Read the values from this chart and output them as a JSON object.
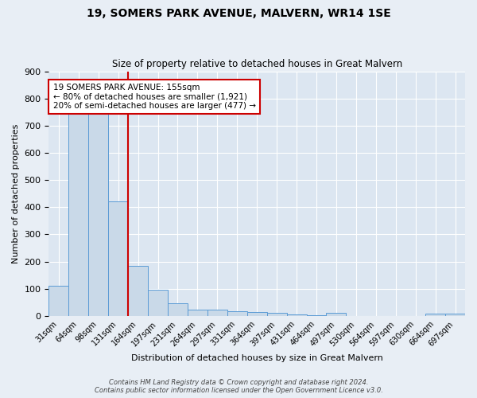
{
  "title": "19, SOMERS PARK AVENUE, MALVERN, WR14 1SE",
  "subtitle": "Size of property relative to detached houses in Great Malvern",
  "xlabel": "Distribution of detached houses by size in Great Malvern",
  "ylabel": "Number of detached properties",
  "categories": [
    "31sqm",
    "64sqm",
    "98sqm",
    "131sqm",
    "164sqm",
    "197sqm",
    "231sqm",
    "264sqm",
    "297sqm",
    "331sqm",
    "364sqm",
    "397sqm",
    "431sqm",
    "464sqm",
    "497sqm",
    "530sqm",
    "564sqm",
    "597sqm",
    "630sqm",
    "664sqm",
    "697sqm"
  ],
  "values": [
    112,
    750,
    752,
    420,
    185,
    95,
    47,
    22,
    22,
    18,
    15,
    12,
    5,
    2,
    10,
    0,
    0,
    0,
    0,
    8,
    8
  ],
  "bar_color": "#c9d9e8",
  "bar_edge_color": "#5b9bd5",
  "property_line_color": "#cc0000",
  "annotation_line1": "19 SOMERS PARK AVENUE: 155sqm",
  "annotation_line2": "← 80% of detached houses are smaller (1,921)",
  "annotation_line3": "20% of semi-detached houses are larger (477) →",
  "annotation_box_color": "#cc0000",
  "ylim": [
    0,
    900
  ],
  "yticks": [
    0,
    100,
    200,
    300,
    400,
    500,
    600,
    700,
    800,
    900
  ],
  "fig_bg_color": "#e8eef5",
  "plot_bg_color": "#dce6f1",
  "footer_line1": "Contains HM Land Registry data © Crown copyright and database right 2024.",
  "footer_line2": "Contains public sector information licensed under the Open Government Licence v3.0."
}
